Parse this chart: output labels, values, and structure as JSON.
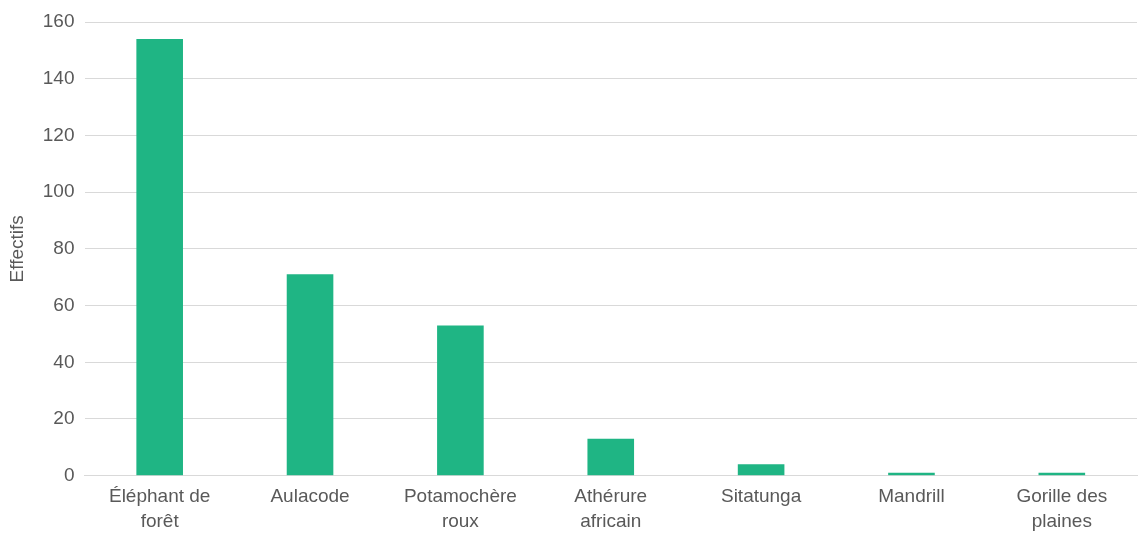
{
  "chart_data": {
    "type": "bar",
    "ylabel": "Effectifs",
    "categories": [
      "Éléphant de forêt",
      "Aulacode",
      "Potamochère roux",
      "Athérure africain",
      "Sitatunga",
      "Mandrill",
      "Gorille des plaines"
    ],
    "values": [
      154,
      71,
      53,
      13,
      4,
      1,
      1
    ],
    "color": "#1fb584",
    "ylim": [
      0,
      160
    ],
    "yticks": [
      0,
      20,
      40,
      60,
      80,
      100,
      120,
      140,
      160
    ],
    "grid": "y",
    "legend": false
  }
}
